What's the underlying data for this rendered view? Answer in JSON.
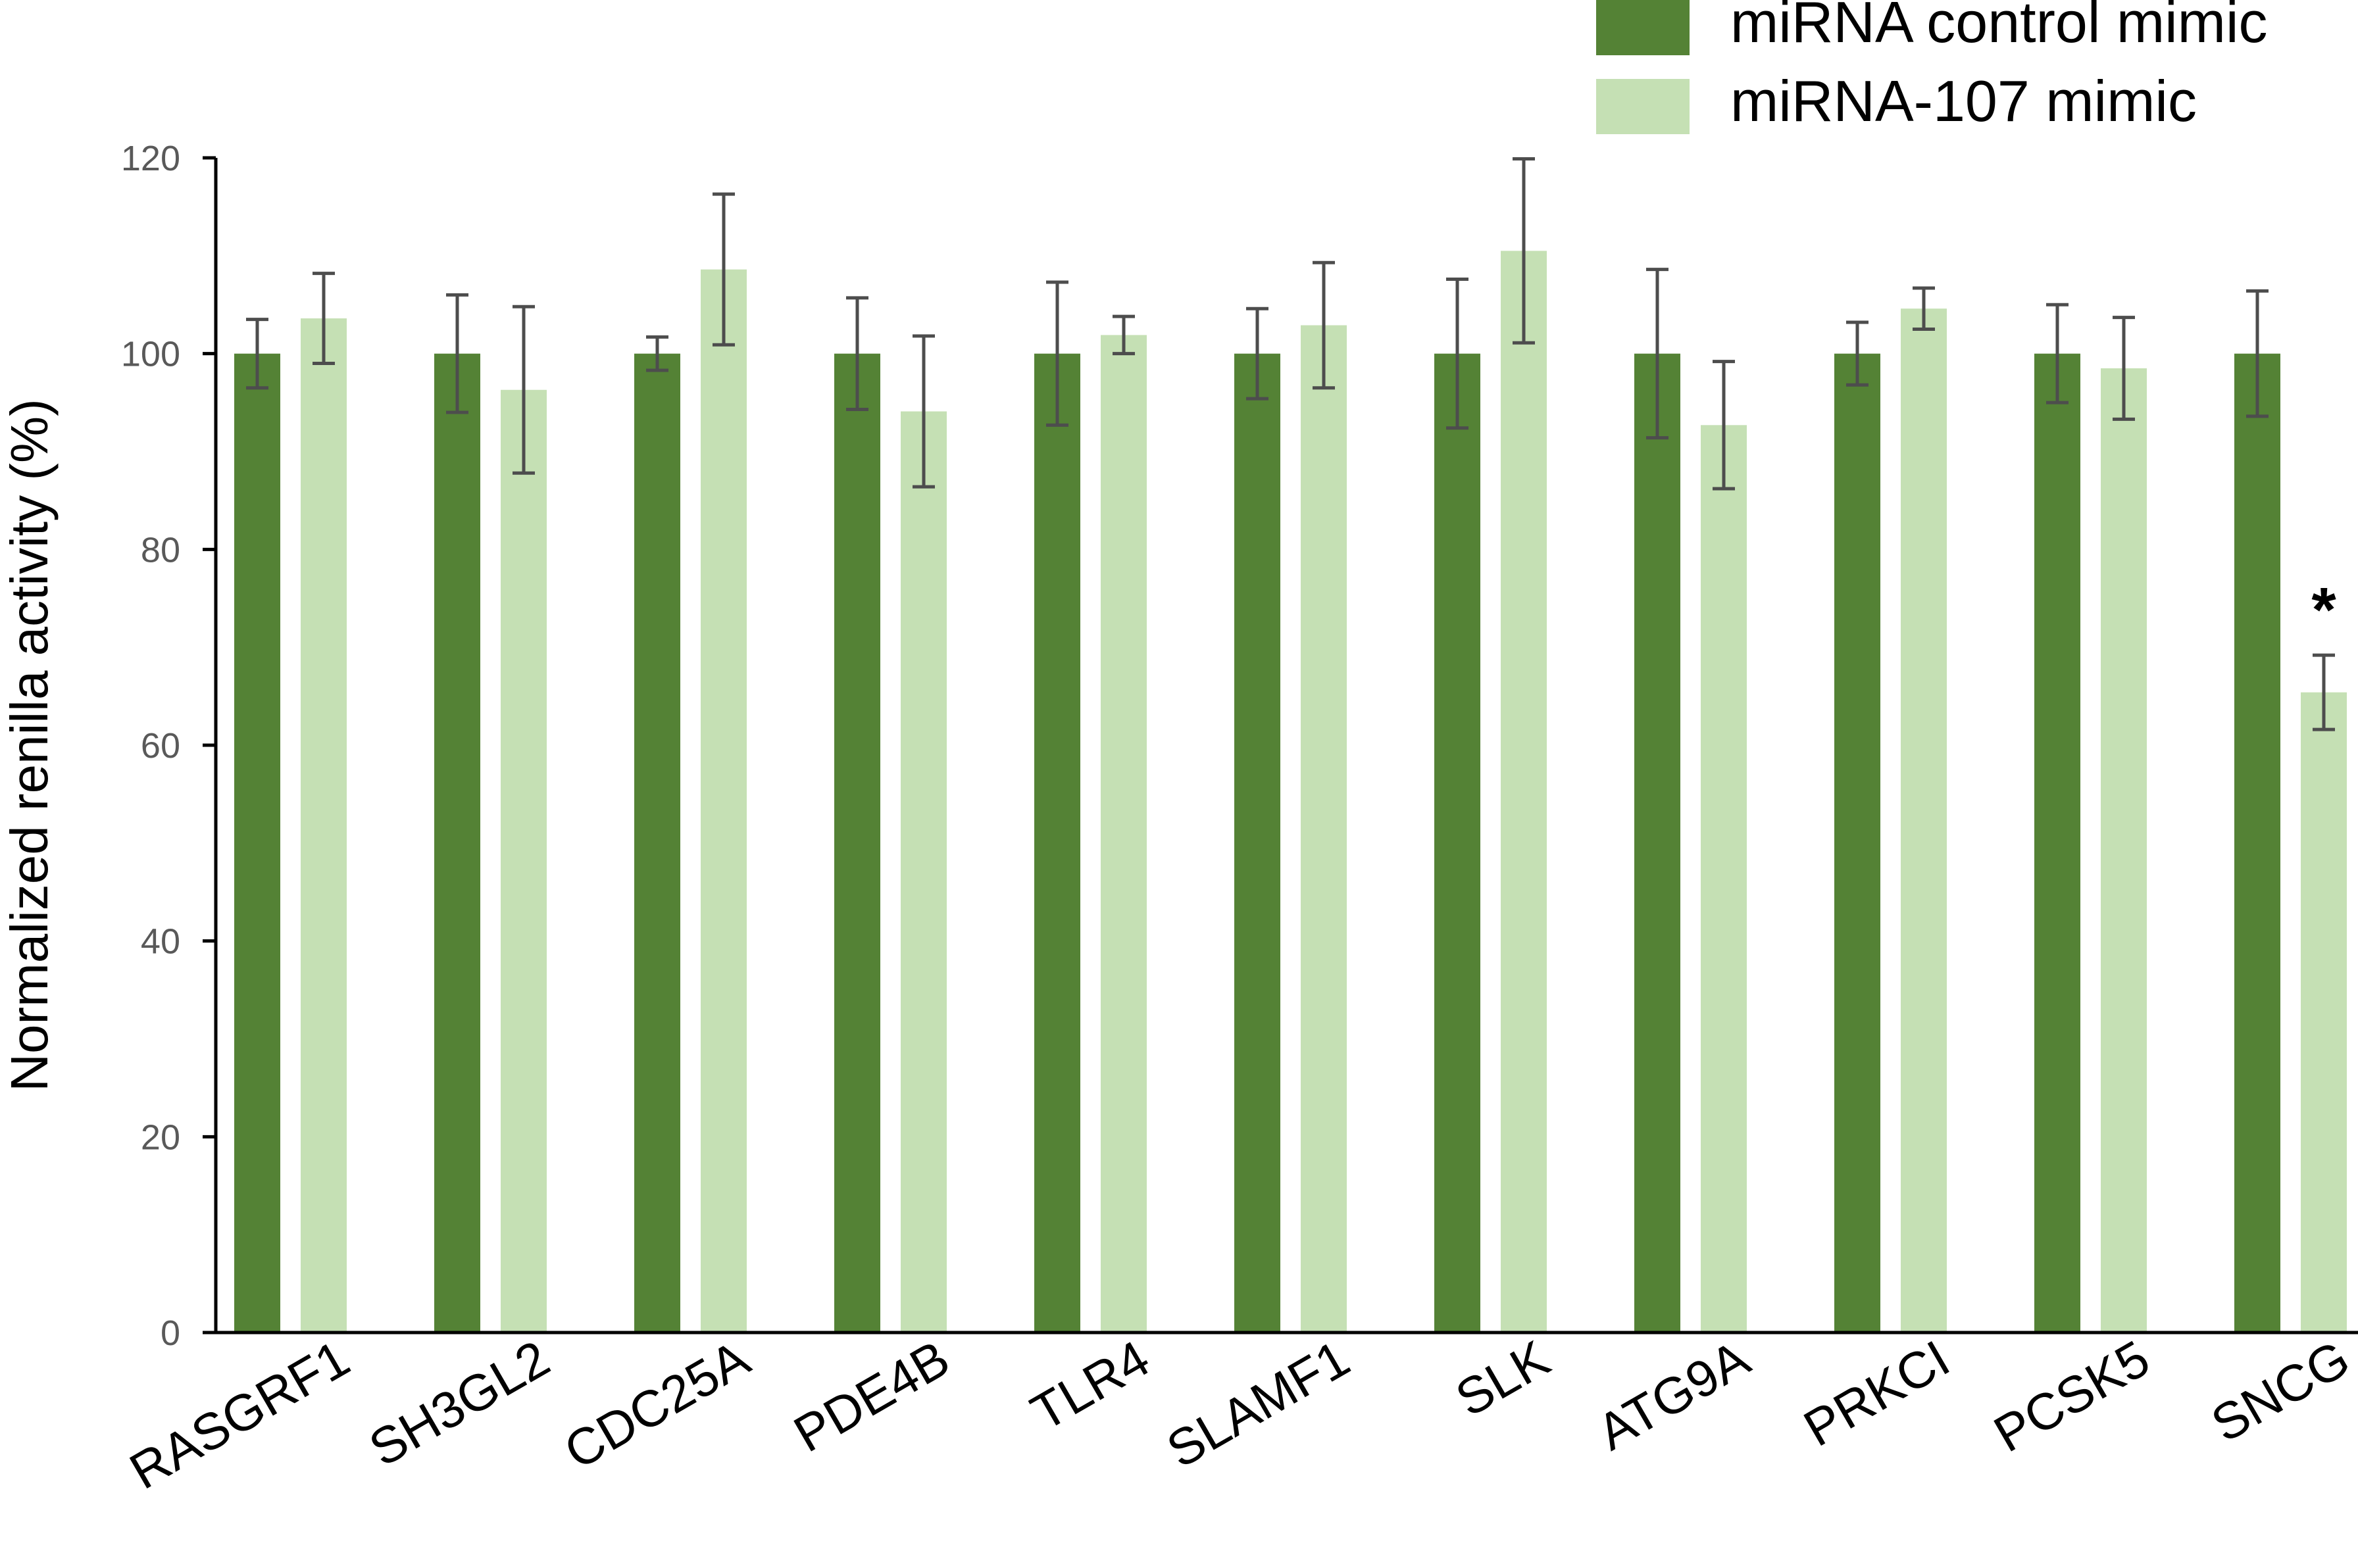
{
  "chart_data": {
    "type": "bar",
    "title": "",
    "xlabel": "",
    "ylabel": "Normalized renilla activity (%)",
    "ylim": [
      0,
      120
    ],
    "yticks": [
      0,
      20,
      40,
      60,
      80,
      100,
      120
    ],
    "grid": false,
    "legend_position": "top-right",
    "categories": [
      "RASGRF1",
      "SH3GL2",
      "CDC25A",
      "PDE4B",
      "TLR4",
      "SLAMF1",
      "SLK",
      "ATG9A",
      "PRKCI",
      "PCSK5",
      "SNCG"
    ],
    "series": [
      {
        "name": "miRNA control mimic",
        "color": "#548235",
        "values": [
          100,
          100,
          100,
          100,
          100,
          100,
          100,
          100,
          100,
          100,
          100
        ],
        "errors": [
          3.5,
          6.0,
          1.7,
          5.7,
          7.3,
          4.6,
          7.6,
          8.6,
          3.2,
          5.0,
          6.4
        ]
      },
      {
        "name": "miRNA-107 mimic",
        "color": "#C5E0B4",
        "values": [
          103.6,
          96.3,
          108.6,
          94.1,
          101.9,
          102.9,
          110.5,
          92.7,
          104.6,
          98.5,
          65.4
        ],
        "errors": [
          4.6,
          8.5,
          7.7,
          7.7,
          1.9,
          6.4,
          9.4,
          6.5,
          2.1,
          5.2,
          3.8
        ]
      }
    ],
    "annotations": [
      {
        "category": "SNCG",
        "series": "miRNA-107 mimic",
        "text": "*"
      }
    ]
  }
}
